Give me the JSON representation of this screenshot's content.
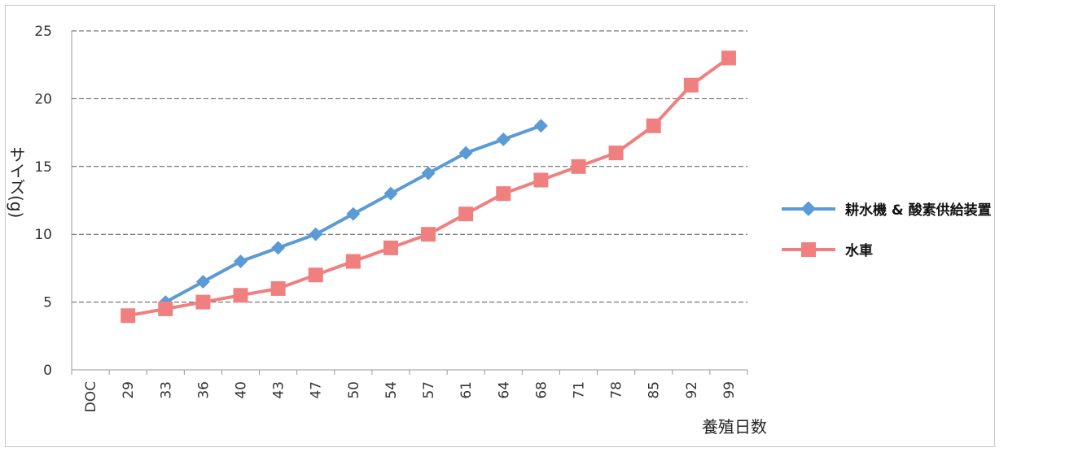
{
  "chart_data": {
    "type": "line",
    "categories": [
      "DOC",
      "29",
      "33",
      "36",
      "40",
      "43",
      "47",
      "50",
      "54",
      "57",
      "61",
      "64",
      "68",
      "71",
      "78",
      "85",
      "92",
      "99"
    ],
    "series": [
      {
        "name": "耕水機 & 酸素供給装置",
        "color": "#5b9bd5",
        "marker": "diamond",
        "values": [
          null,
          null,
          5,
          6.5,
          8,
          9,
          10,
          11.5,
          13,
          14.5,
          16,
          17,
          18,
          null,
          null,
          null,
          null,
          null
        ]
      },
      {
        "name": "水車",
        "color": "#f08080",
        "marker": "square",
        "values": [
          null,
          4,
          4.5,
          5,
          5.5,
          6,
          7,
          8,
          9,
          10,
          11.5,
          13,
          14,
          15,
          16,
          18,
          21,
          23
        ]
      }
    ],
    "yticks": [
      "0",
      "5",
      "10",
      "15",
      "20",
      "25"
    ],
    "ylim": [
      0,
      25
    ],
    "xlabel": "養殖日数",
    "ylabel": "サイズ(g)",
    "legend_position": "right",
    "grid": "horizontal dashed"
  }
}
